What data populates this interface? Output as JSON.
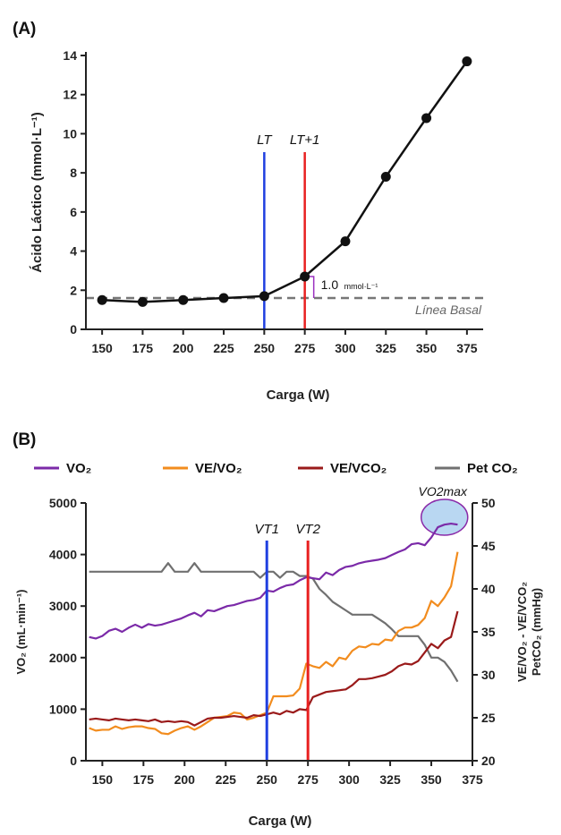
{
  "chart_data": [
    {
      "panel_label": "(A)",
      "type": "line",
      "xlabel": "Carga (W)",
      "ylabel": "Ácido Láctico (mmol·L⁻¹)",
      "xlim": [
        140,
        385
      ],
      "ylim": [
        0,
        14
      ],
      "x_ticks": [
        150,
        175,
        200,
        225,
        250,
        275,
        300,
        325,
        350,
        375
      ],
      "y_ticks": [
        0,
        2,
        4,
        6,
        8,
        10,
        12,
        14
      ],
      "grid": false,
      "series": [
        {
          "color": "#111111",
          "x": [
            150,
            175,
            200,
            225,
            250,
            275,
            300,
            325,
            350,
            375
          ],
          "y": [
            1.5,
            1.4,
            1.5,
            1.6,
            1.7,
            2.7,
            4.5,
            7.8,
            10.8,
            13.7
          ]
        }
      ],
      "baseline": {
        "y": 1.6,
        "label": "Línea Basal",
        "color": "#777777"
      },
      "vlines": [
        {
          "x": 250,
          "label": "LT",
          "color": "#1f3fe0"
        },
        {
          "x": 275,
          "label": "LT+1",
          "color": "#e82020"
        }
      ],
      "annotation": {
        "text": "1.0",
        "unit": "mmol·L⁻¹",
        "color": "#9b30c0"
      }
    },
    {
      "panel_label": "(B)",
      "type": "line",
      "xlabel": "Carga (W)",
      "ylabel_left": "VO₂ (mL·min⁻¹)",
      "ylabel_right_1": "VE/VO₂ - VE/VCO₂",
      "ylabel_right_2": "PetCO₂ (mmHg)",
      "xlim": [
        140,
        375
      ],
      "ylim_left": [
        0,
        5000
      ],
      "ylim_right": [
        20,
        50
      ],
      "x_ticks": [
        150,
        175,
        200,
        225,
        250,
        275,
        300,
        325,
        350,
        375
      ],
      "y_ticks_left": [
        0,
        1000,
        2000,
        3000,
        4000,
        5000
      ],
      "y_ticks_right": [
        20,
        25,
        30,
        35,
        40,
        45,
        50
      ],
      "legend_position": "top",
      "vlines": [
        {
          "x": 250,
          "label": "VT1",
          "color": "#1f3fe0"
        },
        {
          "x": 275,
          "label": "VT2",
          "color": "#e82020"
        }
      ],
      "highlight": {
        "label": "VO2max",
        "x": 358,
        "y": 4600
      },
      "series": [
        {
          "name": "VO₂",
          "axis": "left",
          "color": "#7b2aa8",
          "x": [
            142,
            146,
            150,
            154,
            158,
            162,
            166,
            170,
            174,
            178,
            182,
            186,
            190,
            194,
            198,
            202,
            206,
            210,
            214,
            218,
            222,
            226,
            230,
            234,
            238,
            242,
            246,
            250,
            254,
            258,
            262,
            266,
            270,
            274,
            278,
            282,
            286,
            290,
            294,
            298,
            302,
            306,
            310,
            314,
            318,
            322,
            326,
            330,
            334,
            338,
            342,
            346,
            350,
            354,
            358,
            362,
            366
          ],
          "y": [
            2400,
            2370,
            2420,
            2520,
            2560,
            2500,
            2580,
            2640,
            2580,
            2650,
            2620,
            2640,
            2680,
            2720,
            2760,
            2820,
            2870,
            2800,
            2920,
            2900,
            2950,
            3000,
            3020,
            3060,
            3100,
            3120,
            3160,
            3300,
            3280,
            3350,
            3400,
            3420,
            3500,
            3560,
            3540,
            3520,
            3650,
            3600,
            3700,
            3760,
            3780,
            3830,
            3860,
            3880,
            3900,
            3930,
            3990,
            4050,
            4100,
            4200,
            4220,
            4180,
            4330,
            4530,
            4580,
            4600,
            4580
          ]
        },
        {
          "name": "VE/VO₂",
          "axis": "right",
          "color": "#f28c1e",
          "x": [
            142,
            146,
            150,
            154,
            158,
            162,
            166,
            170,
            174,
            178,
            182,
            186,
            190,
            194,
            198,
            202,
            206,
            210,
            214,
            218,
            222,
            226,
            230,
            234,
            238,
            242,
            246,
            250,
            254,
            258,
            262,
            266,
            270,
            274,
            278,
            282,
            286,
            290,
            294,
            298,
            302,
            306,
            310,
            314,
            318,
            322,
            326,
            330,
            334,
            338,
            342,
            346,
            350,
            354,
            358,
            362,
            366
          ],
          "y": [
            23.8,
            23.5,
            23.6,
            23.6,
            24.0,
            23.7,
            23.9,
            24.0,
            24.0,
            23.8,
            23.7,
            23.2,
            23.1,
            23.5,
            23.8,
            24.0,
            23.6,
            24.0,
            24.5,
            25.0,
            25.1,
            25.2,
            25.6,
            25.5,
            24.8,
            25.0,
            25.3,
            25.6,
            27.5,
            27.5,
            27.5,
            27.6,
            28.4,
            31.3,
            31.0,
            30.8,
            31.5,
            31.0,
            32.0,
            31.8,
            32.8,
            33.3,
            33.2,
            33.6,
            33.5,
            34.1,
            34.0,
            35.1,
            35.5,
            35.5,
            35.8,
            36.6,
            38.6,
            38.0,
            39.0,
            40.3,
            44.3
          ]
        },
        {
          "name": "VE/VCO₂",
          "axis": "right",
          "color": "#9a1a1a",
          "x": [
            142,
            146,
            150,
            154,
            158,
            162,
            166,
            170,
            174,
            178,
            182,
            186,
            190,
            194,
            198,
            202,
            206,
            210,
            214,
            218,
            222,
            226,
            230,
            234,
            238,
            242,
            246,
            250,
            254,
            258,
            262,
            266,
            270,
            274,
            278,
            282,
            286,
            290,
            294,
            298,
            302,
            306,
            310,
            314,
            318,
            322,
            326,
            330,
            334,
            338,
            342,
            346,
            350,
            354,
            358,
            362,
            366
          ],
          "y": [
            24.8,
            24.9,
            24.8,
            24.7,
            24.9,
            24.8,
            24.7,
            24.8,
            24.7,
            24.6,
            24.8,
            24.5,
            24.6,
            24.5,
            24.6,
            24.5,
            24.1,
            24.5,
            24.9,
            25.0,
            25.0,
            25.1,
            25.2,
            25.1,
            25.0,
            25.3,
            25.2,
            25.4,
            25.6,
            25.4,
            25.8,
            25.6,
            26.0,
            25.9,
            27.4,
            27.7,
            28.0,
            28.1,
            28.2,
            28.3,
            28.8,
            29.5,
            29.5,
            29.6,
            29.8,
            30.0,
            30.4,
            31.0,
            31.3,
            31.2,
            31.6,
            32.6,
            33.6,
            33.1,
            34.0,
            34.4,
            37.4
          ]
        },
        {
          "name": "Pet CO₂",
          "axis": "right",
          "color": "#707070",
          "x": [
            142,
            146,
            150,
            154,
            158,
            162,
            166,
            170,
            174,
            178,
            182,
            186,
            190,
            194,
            198,
            202,
            206,
            210,
            214,
            218,
            222,
            226,
            230,
            234,
            238,
            242,
            246,
            250,
            254,
            258,
            262,
            266,
            270,
            274,
            278,
            282,
            286,
            290,
            294,
            298,
            302,
            306,
            310,
            314,
            318,
            322,
            326,
            330,
            334,
            338,
            342,
            346,
            350,
            354,
            358,
            362,
            366
          ],
          "y": [
            42,
            42,
            42,
            42,
            42,
            42,
            42,
            42,
            42,
            42,
            42,
            42,
            43,
            42,
            42,
            42,
            43,
            42,
            42,
            42,
            42,
            42,
            42,
            42,
            42,
            42,
            41.3,
            42,
            42,
            41.3,
            42,
            42,
            41.5,
            41.5,
            41.2,
            40,
            39.3,
            38.5,
            38,
            37.5,
            37.0,
            37.0,
            37.0,
            37.0,
            36.5,
            36.0,
            35.3,
            34.5,
            34.5,
            34.5,
            34.5,
            33.5,
            32.0,
            32.0,
            31.5,
            30.5,
            29.2
          ]
        }
      ]
    }
  ]
}
